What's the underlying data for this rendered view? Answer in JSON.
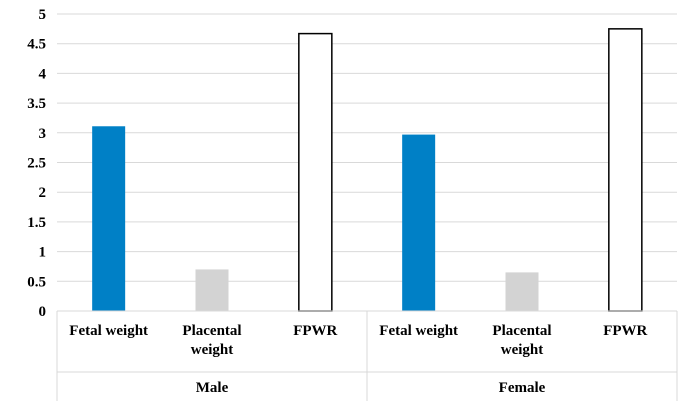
{
  "chart_data": {
    "type": "bar",
    "title": "",
    "xlabel": "",
    "ylabel": "",
    "ylim": [
      0,
      5
    ],
    "y_ticks": [
      "0",
      "0.5",
      "1",
      "1.5",
      "2",
      "2.5",
      "3",
      "3.5",
      "4",
      "4.5",
      "5"
    ],
    "grid": "horizontal",
    "groups": [
      {
        "name": "Male",
        "categories": [
          {
            "label_lines": [
              "Fetal weight"
            ],
            "value": 3.11,
            "color": "#0080c6",
            "style": "filled"
          },
          {
            "label_lines": [
              "Placental",
              "weight"
            ],
            "value": 0.7,
            "color": "#d3d3d3",
            "style": "filled"
          },
          {
            "label_lines": [
              "FPWR"
            ],
            "value": 4.67,
            "color": "#000000",
            "style": "outline"
          }
        ]
      },
      {
        "name": "Female",
        "categories": [
          {
            "label_lines": [
              "Fetal weight"
            ],
            "value": 2.97,
            "color": "#0080c6",
            "style": "filled"
          },
          {
            "label_lines": [
              "Placental",
              "weight"
            ],
            "value": 0.65,
            "color": "#d3d3d3",
            "style": "filled"
          },
          {
            "label_lines": [
              "FPWR"
            ],
            "value": 4.75,
            "color": "#000000",
            "style": "outline"
          }
        ]
      }
    ]
  }
}
